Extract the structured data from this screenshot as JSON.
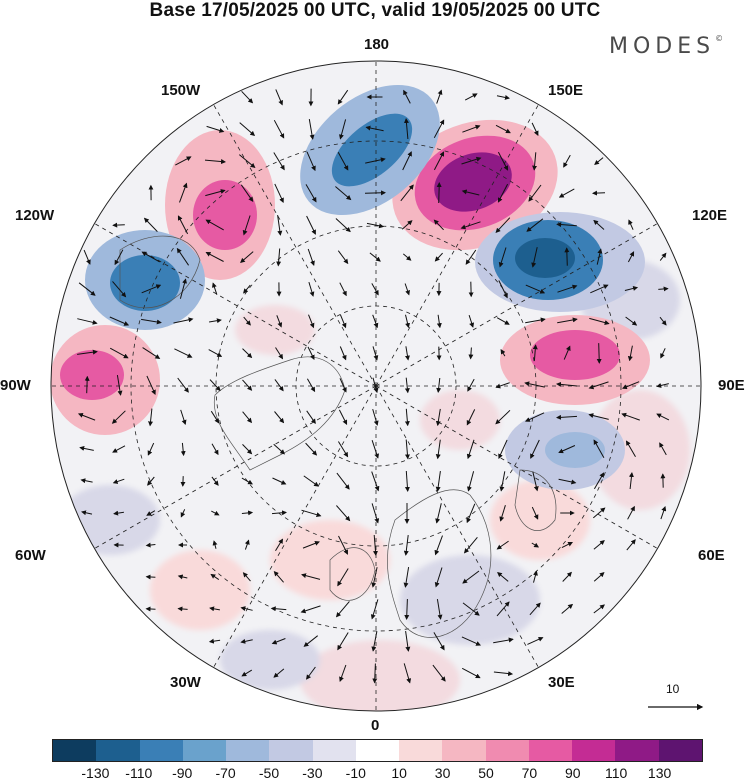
{
  "title": "Base 17/05/2025 00 UTC, valid 19/05/2025 00 UTC",
  "brand": {
    "name": "MODES",
    "mark": "©"
  },
  "longitude_labels": {
    "n180": "180",
    "w150": "150W",
    "e150": "150E",
    "w120": "120W",
    "e120": "120E",
    "w90": "90W",
    "e90": "90E",
    "w60": "60W",
    "e60": "60E",
    "w30": "30W",
    "e30": "30E",
    "s0": "0"
  },
  "reference_vector": {
    "label": "10"
  },
  "colorbar": {
    "colors": [
      "#0d3c5f",
      "#1d5f8f",
      "#3a7fb6",
      "#6aa2cc",
      "#9fb9dc",
      "#c2c9e3",
      "#e2e2ef",
      "#ffffff",
      "#f9dada",
      "#f5b7c2",
      "#f08bb0",
      "#e65aa3",
      "#c42c94",
      "#8f1a86",
      "#5e1470"
    ],
    "tick_labels": [
      "-130",
      "-110",
      "-90",
      "-70",
      "-50",
      "-30",
      "-10",
      "10",
      "30",
      "50",
      "70",
      "90",
      "110",
      "130"
    ]
  },
  "anomaly_features": [
    {
      "sign": "positive",
      "value": 90,
      "lon": 148,
      "lat": 58
    },
    {
      "sign": "positive",
      "value": 70,
      "lon": -150,
      "lat": 48
    },
    {
      "sign": "positive",
      "value": 70,
      "lon": -90,
      "lat": 33
    },
    {
      "sign": "positive",
      "value": 70,
      "lon": 88,
      "lat": 55
    },
    {
      "sign": "negative",
      "value": -70,
      "lon": 178,
      "lat": 54
    },
    {
      "sign": "negative",
      "value": -90,
      "lon": 118,
      "lat": 55
    },
    {
      "sign": "negative",
      "value": -70,
      "lon": -122,
      "lat": 44
    },
    {
      "sign": "negative",
      "value": -30,
      "lon": 68,
      "lat": 55
    }
  ]
}
